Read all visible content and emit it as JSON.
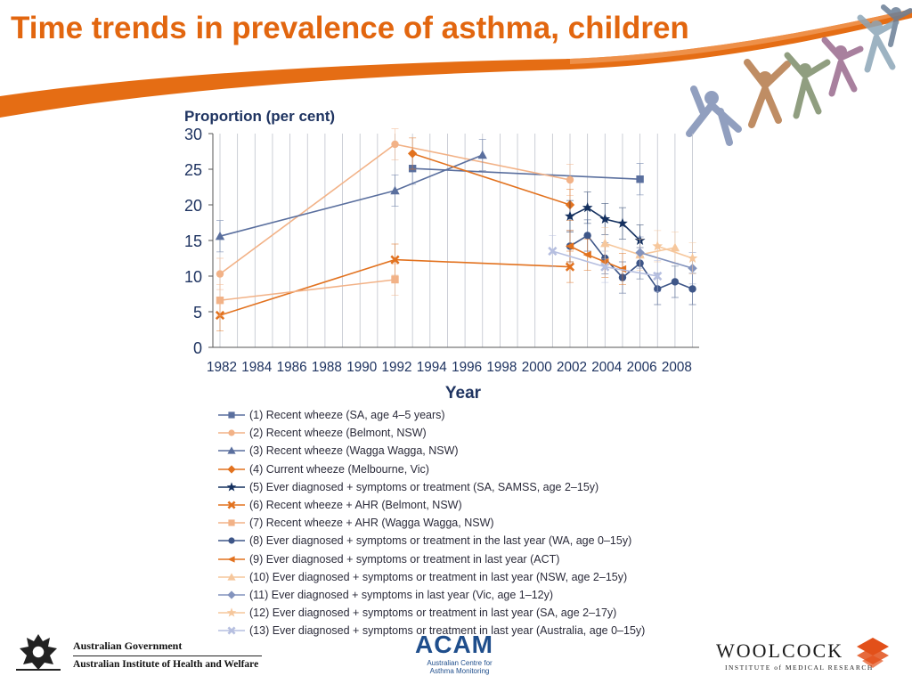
{
  "slide": {
    "title": "Time trends in prevalence of asthma, children"
  },
  "colors": {
    "title": "#e2660f",
    "swoosh": "#e56d14",
    "dark_blue": "#14305f",
    "slate_blue": "#5a6f9e",
    "orange": "#e2721f",
    "light_orange": "#f2b287",
    "pale_orange": "#f6c79c",
    "lavender": "#b6bfe0"
  },
  "chart_data": {
    "type": "line",
    "ylabel": "Proportion (per cent)",
    "xlabel": "Year",
    "ylim": [
      0,
      30
    ],
    "xlim": [
      1982,
      2008
    ],
    "yticks": [
      0,
      5,
      10,
      15,
      20,
      25,
      30
    ],
    "xticks": [
      1982,
      1984,
      1986,
      1988,
      1990,
      1992,
      1994,
      1996,
      1998,
      2000,
      2002,
      2004,
      2006,
      2008
    ],
    "grid": "vertical",
    "legend_position": "below",
    "series": [
      {
        "name": "(1) Recent wheeze (SA, age 4–5 years)",
        "color": "#5a6f9e",
        "marker": "square",
        "points": [
          [
            1993,
            25.1
          ],
          [
            2006,
            23.6
          ]
        ]
      },
      {
        "name": "(2) Recent wheeze (Belmont, NSW)",
        "color": "#f2b287",
        "marker": "circle",
        "points": [
          [
            1982,
            10.3
          ],
          [
            1992,
            28.5
          ],
          [
            2002,
            23.5
          ]
        ]
      },
      {
        "name": "(3) Recent wheeze (Wagga Wagga, NSW)",
        "color": "#5a6f9e",
        "marker": "triangle",
        "points": [
          [
            1982,
            15.6
          ],
          [
            1992,
            22.0
          ],
          [
            1997,
            27.0
          ]
        ]
      },
      {
        "name": "(4) Current wheeze (Melbourne, Vic)",
        "color": "#e2721f",
        "marker": "diamond",
        "points": [
          [
            1993,
            27.2
          ],
          [
            2002,
            20.0
          ]
        ]
      },
      {
        "name": "(5) Ever diagnosed + symptoms or treatment (SA, SAMSS, age 2–15y)",
        "color": "#14305f",
        "marker": "star",
        "points": [
          [
            2002,
            18.4
          ],
          [
            2003,
            19.6
          ],
          [
            2004,
            18.0
          ],
          [
            2005,
            17.4
          ],
          [
            2006,
            15.0
          ]
        ]
      },
      {
        "name": "(6) Recent wheeze + AHR (Belmont, NSW)",
        "color": "#e2721f",
        "marker": "x",
        "points": [
          [
            1982,
            4.5
          ],
          [
            1992,
            12.3
          ],
          [
            2002,
            11.3
          ]
        ]
      },
      {
        "name": "(7) Recent wheeze + AHR (Wagga Wagga, NSW)",
        "color": "#f2b287",
        "marker": "square",
        "points": [
          [
            1982,
            6.6
          ],
          [
            1992,
            9.5
          ]
        ]
      },
      {
        "name": "(8) Ever diagnosed + symptoms or treatment in the last year (WA, age 0–15y)",
        "color": "#3e5688",
        "marker": "circle",
        "points": [
          [
            2002,
            14.2
          ],
          [
            2003,
            15.7
          ],
          [
            2004,
            12.5
          ],
          [
            2005,
            9.8
          ],
          [
            2006,
            11.8
          ],
          [
            2007,
            8.2
          ],
          [
            2008,
            9.2
          ],
          [
            2009,
            8.2
          ]
        ]
      },
      {
        "name": "(9) Ever diagnosed + symptoms or treatment in last year (ACT)",
        "color": "#e2721f",
        "marker": "triangle-left",
        "points": [
          [
            2002,
            14.2
          ],
          [
            2003,
            13.0
          ],
          [
            2004,
            12.0
          ],
          [
            2005,
            11.0
          ]
        ]
      },
      {
        "name": "(10) Ever diagnosed + symptoms or treatment in last year (NSW, age 2–15y)",
        "color": "#f6c79c",
        "marker": "triangle",
        "points": [
          [
            2004,
            14.6
          ],
          [
            2006,
            13.0
          ],
          [
            2008,
            14.0
          ]
        ]
      },
      {
        "name": "(11) Ever diagnosed + symptoms in last year (Vic, age 1–12y)",
        "color": "#8393bd",
        "marker": "diamond",
        "points": [
          [
            2006,
            13.3
          ],
          [
            2009,
            11.1
          ]
        ]
      },
      {
        "name": "(12) Ever diagnosed + symptoms or treatment in last year (SA, age 2–17y)",
        "color": "#f6c79c",
        "marker": "star",
        "points": [
          [
            2007,
            14.2
          ],
          [
            2009,
            12.5
          ]
        ]
      },
      {
        "name": "(13) Ever diagnosed + symptoms or treatment in last year (Australia, age 0–15y)",
        "color": "#b6bfe0",
        "marker": "x",
        "points": [
          [
            2001,
            13.5
          ],
          [
            2004,
            11.3
          ],
          [
            2007,
            10.0
          ]
        ]
      }
    ]
  },
  "footer": {
    "gov_line1": "Australian Government",
    "gov_line2": "Australian Institute of Health and Welfare",
    "acam_word": "ACAM",
    "acam_sub": "Australian Centre for Asthma Monitoring",
    "woolcock_word": "WOOLCOCK",
    "woolcock_sub": "INSTITUTE of MEDICAL RESEARCH"
  }
}
